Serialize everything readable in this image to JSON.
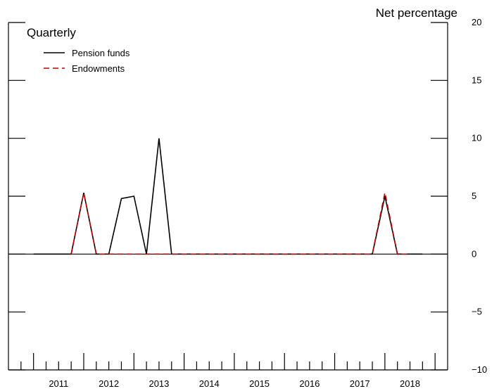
{
  "chart_data": {
    "type": "line",
    "title": "Quarterly",
    "ylabel": "Net percentage",
    "ylim": [
      -10,
      20
    ],
    "yticks": [
      -10,
      -5,
      0,
      5,
      10,
      15,
      20
    ],
    "ytick_labels": [
      "−10",
      "−5",
      "0",
      "5",
      "10",
      "15",
      "20"
    ],
    "xlim": [
      2010.5,
      2019.25
    ],
    "year_labels": [
      "2011",
      "2012",
      "2013",
      "2014",
      "2015",
      "2016",
      "2017",
      "2018"
    ],
    "x_quarters": [
      "2011 Q1",
      "2011 Q2",
      "2011 Q3",
      "2011 Q4",
      "2012 Q1",
      "2012 Q2",
      "2012 Q3",
      "2012 Q4",
      "2013 Q1",
      "2013 Q2",
      "2013 Q3",
      "2013 Q4",
      "2014 Q1",
      "2014 Q2",
      "2014 Q3",
      "2014 Q4",
      "2015 Q1",
      "2015 Q2",
      "2015 Q3",
      "2015 Q4",
      "2016 Q1",
      "2016 Q2",
      "2016 Q3",
      "2016 Q4",
      "2017 Q1",
      "2017 Q2",
      "2017 Q3",
      "2017 Q4",
      "2018 Q1",
      "2018 Q2",
      "2018 Q3",
      "2018 Q4"
    ],
    "series": [
      {
        "name": "Pension funds",
        "color": "#000000",
        "dash": "solid",
        "values": [
          0,
          0,
          0,
          0,
          5.3,
          0,
          0,
          4.8,
          5.0,
          0,
          10.0,
          0,
          0,
          0,
          0,
          0,
          0,
          0,
          0,
          0,
          0,
          0,
          0,
          0,
          0,
          0,
          0,
          0,
          5.0,
          0,
          0,
          0
        ]
      },
      {
        "name": "Endowments",
        "color": "#c00000",
        "dash": "dashed",
        "values": [
          null,
          null,
          null,
          0,
          5.3,
          0,
          0,
          0,
          0,
          0,
          0,
          0,
          0,
          0,
          0,
          0,
          0,
          0,
          0,
          0,
          0,
          0,
          0,
          0,
          0,
          0,
          0,
          0,
          5.3,
          0,
          0,
          null
        ]
      }
    ],
    "legend_position": "top-left",
    "grid": false
  }
}
